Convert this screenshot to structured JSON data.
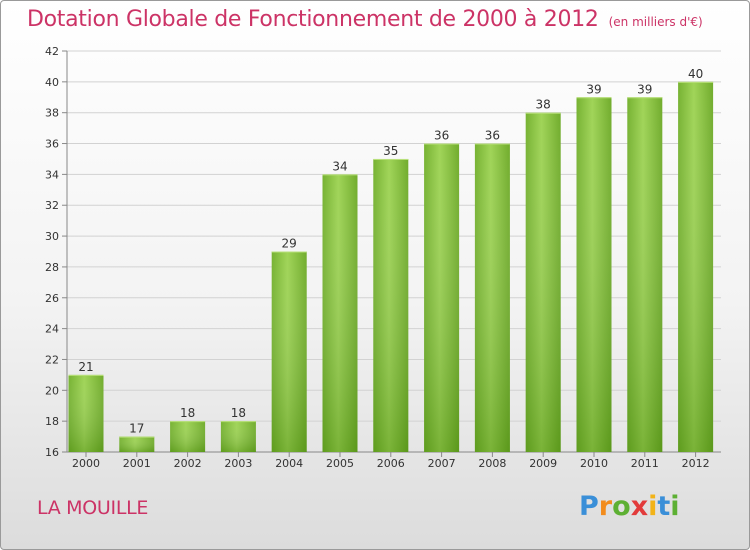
{
  "header": {
    "title": "Dotation Globale de Fonctionnement de 2000 à 2012",
    "unit": "(en milliers d'€)"
  },
  "footer": {
    "commune": "LA MOUILLE",
    "logo": "Proxiti",
    "logo_colors": [
      "#3a8fd8",
      "#f28c1d",
      "#5db033",
      "#e23b3b",
      "#f2b318",
      "#3a8fd8",
      "#5db033"
    ]
  },
  "chart_data": {
    "type": "bar",
    "categories": [
      "2000",
      "2001",
      "2002",
      "2003",
      "2004",
      "2005",
      "2006",
      "2007",
      "2008",
      "2009",
      "2010",
      "2011",
      "2012"
    ],
    "values": [
      21,
      17,
      18,
      18,
      29,
      34,
      35,
      36,
      36,
      38,
      39,
      39,
      40
    ],
    "ylim": [
      16,
      42
    ],
    "yticks": [
      16,
      18,
      20,
      22,
      24,
      26,
      28,
      30,
      32,
      34,
      36,
      38,
      40,
      42
    ],
    "grid": true,
    "bar_color": "#7ab830"
  }
}
